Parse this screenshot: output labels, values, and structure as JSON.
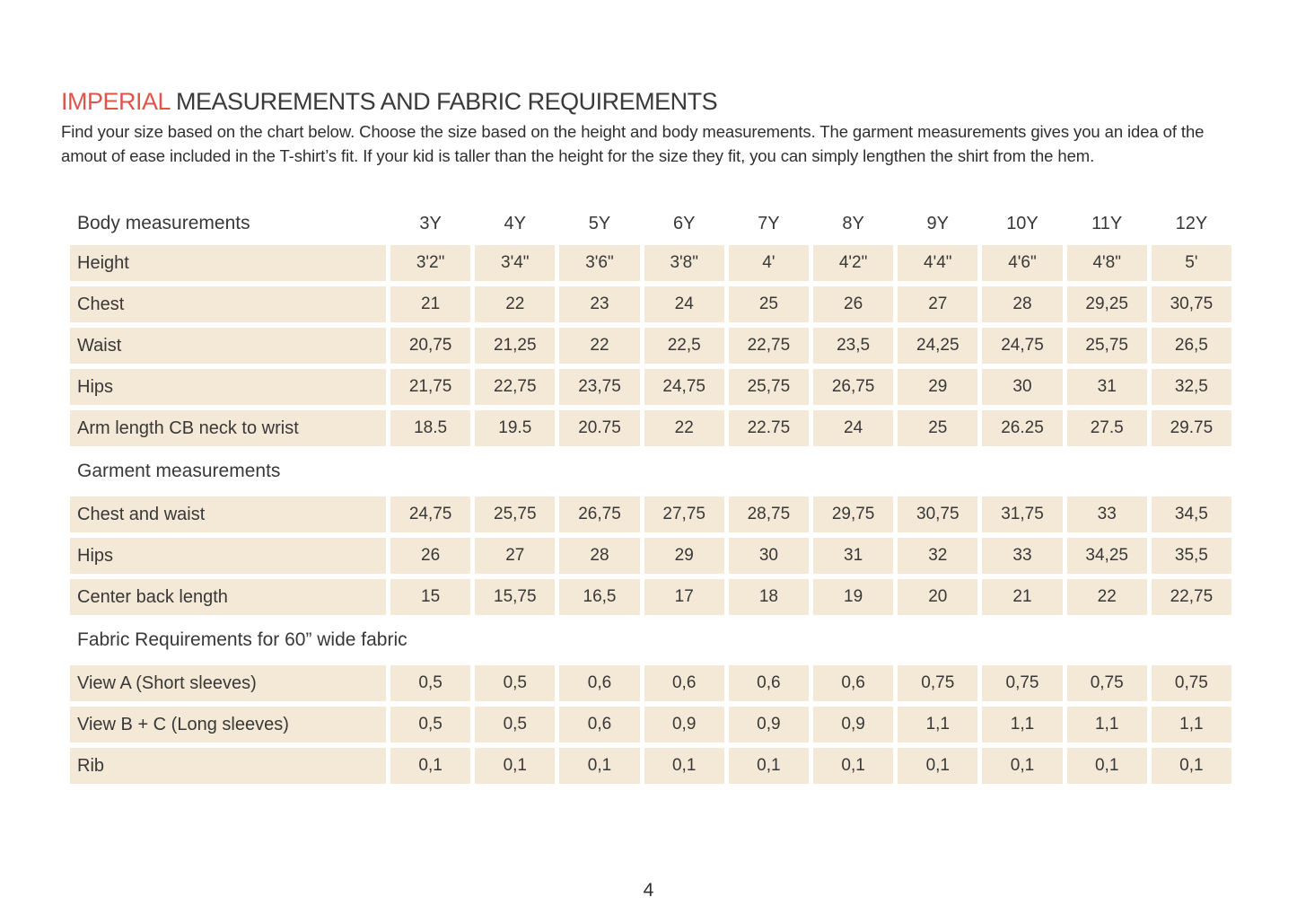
{
  "page": {
    "title_highlight": "IMPERIAL",
    "title_rest": " MEASUREMENTS AND FABRIC REQUIREMENTS",
    "intro": "Find your size based on the chart below. Choose the size based on the height and body measurements. The garment measurements gives you an idea of the amout of ease included in the T-shirt’s fit. If your kid is taller than the height for the size they fit, you can simply lengthen the shirt from the hem.",
    "page_number": "4"
  },
  "colors": {
    "accent": "#e0544e",
    "cell_background": "#f4e8d6",
    "text": "#333333"
  },
  "table": {
    "columns": [
      "3Y",
      "4Y",
      "5Y",
      "6Y",
      "7Y",
      "8Y",
      "9Y",
      "10Y",
      "11Y",
      "12Y"
    ],
    "sections": [
      {
        "title": "Body measurements",
        "rows": [
          {
            "label": "Height",
            "values": [
              "3'2\"",
              "3'4\"",
              "3'6\"",
              "3'8\"",
              "4'",
              "4'2\"",
              "4'4\"",
              "4'6\"",
              "4'8\"",
              "5'"
            ]
          },
          {
            "label": "Chest",
            "values": [
              "21",
              "22",
              "23",
              "24",
              "25",
              "26",
              "27",
              "28",
              "29,25",
              "30,75"
            ]
          },
          {
            "label": "Waist",
            "values": [
              "20,75",
              "21,25",
              "22",
              "22,5",
              "22,75",
              "23,5",
              "24,25",
              "24,75",
              "25,75",
              "26,5"
            ]
          },
          {
            "label": "Hips",
            "values": [
              "21,75",
              "22,75",
              "23,75",
              "24,75",
              "25,75",
              "26,75",
              "29",
              "30",
              "31",
              "32,5"
            ]
          },
          {
            "label": "Arm length CB neck to wrist",
            "values": [
              "18.5",
              "19.5",
              "20.75",
              "22",
              "22.75",
              "24",
              "25",
              "26.25",
              "27.5",
              "29.75"
            ]
          }
        ]
      },
      {
        "title": "Garment measurements",
        "rows": [
          {
            "label": "Chest and waist",
            "values": [
              "24,75",
              "25,75",
              "26,75",
              "27,75",
              "28,75",
              "29,75",
              "30,75",
              "31,75",
              "33",
              "34,5"
            ]
          },
          {
            "label": "Hips",
            "values": [
              "26",
              "27",
              "28",
              "29",
              "30",
              "31",
              "32",
              "33",
              "34,25",
              "35,5"
            ]
          },
          {
            "label": "Center back length",
            "values": [
              "15",
              "15,75",
              "16,5",
              "17",
              "18",
              "19",
              "20",
              "21",
              "22",
              "22,75"
            ]
          }
        ]
      },
      {
        "title": "Fabric Requirements for  60” wide fabric",
        "rows": [
          {
            "label": "View A (Short sleeves)",
            "values": [
              "0,5",
              "0,5",
              "0,6",
              "0,6",
              "0,6",
              "0,6",
              "0,75",
              "0,75",
              "0,75",
              "0,75"
            ]
          },
          {
            "label": "View B + C (Long sleeves)",
            "values": [
              "0,5",
              "0,5",
              "0,6",
              "0,9",
              "0,9",
              "0,9",
              "1,1",
              "1,1",
              "1,1",
              "1,1"
            ]
          },
          {
            "label": "Rib",
            "values": [
              "0,1",
              "0,1",
              "0,1",
              "0,1",
              "0,1",
              "0,1",
              "0,1",
              "0,1",
              "0,1",
              "0,1"
            ]
          }
        ]
      }
    ]
  }
}
